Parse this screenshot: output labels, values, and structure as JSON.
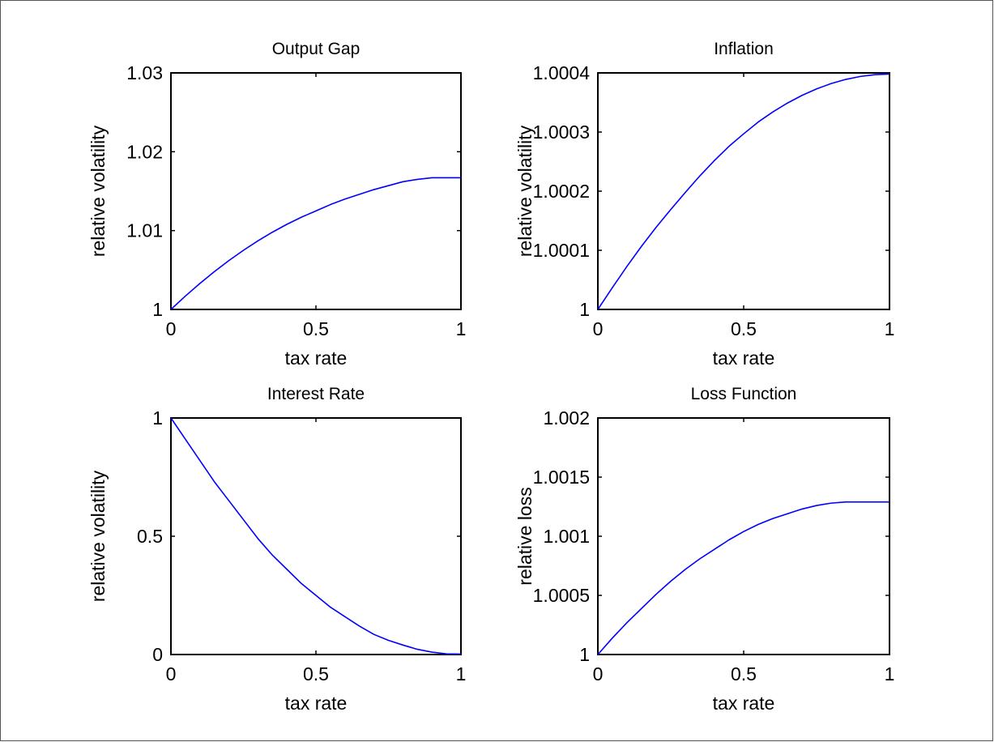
{
  "chart_data": [
    {
      "type": "line",
      "title": "Output Gap",
      "xlabel": "tax rate",
      "ylabel": "relative volatility",
      "xlim": [
        0,
        1
      ],
      "ylim": [
        1,
        1.03
      ],
      "xticks": [
        0,
        0.5,
        1
      ],
      "xtick_labels": [
        "0",
        "0.5",
        "1"
      ],
      "yticks": [
        1,
        1.01,
        1.02,
        1.03
      ],
      "ytick_labels": [
        "1",
        "1.01",
        "1.02",
        "1.03"
      ],
      "grid": false,
      "line_color": "#0000ff",
      "series": [
        {
          "x": [
            0,
            0.05,
            0.1,
            0.15,
            0.2,
            0.25,
            0.3,
            0.35,
            0.4,
            0.45,
            0.5,
            0.55,
            0.6,
            0.65,
            0.7,
            0.75,
            0.8,
            0.85,
            0.9,
            0.95,
            1.0
          ],
          "y": [
            1.0,
            1.0017,
            1.0033,
            1.0048,
            1.0062,
            1.0075,
            1.0087,
            1.0098,
            1.0108,
            1.0117,
            1.0125,
            1.0133,
            1.014,
            1.0146,
            1.0152,
            1.0157,
            1.0162,
            1.0165,
            1.0167,
            1.0167,
            1.0167
          ]
        }
      ]
    },
    {
      "type": "line",
      "title": "Inflation",
      "xlabel": "tax rate",
      "ylabel": "relative volatility",
      "xlim": [
        0,
        1
      ],
      "ylim": [
        1,
        1.0004
      ],
      "xticks": [
        0,
        0.5,
        1
      ],
      "xtick_labels": [
        "0",
        "0.5",
        "1"
      ],
      "yticks": [
        1,
        1.0001,
        1.0002,
        1.0003,
        1.0004
      ],
      "ytick_labels": [
        "1",
        "1.0001",
        "1.0002",
        "1.0003",
        "1.0004"
      ],
      "grid": false,
      "line_color": "#0000ff",
      "series": [
        {
          "x": [
            0,
            0.05,
            0.1,
            0.15,
            0.2,
            0.25,
            0.3,
            0.35,
            0.4,
            0.45,
            0.5,
            0.55,
            0.6,
            0.65,
            0.7,
            0.75,
            0.8,
            0.85,
            0.9,
            0.95,
            1.0
          ],
          "y": [
            1.0,
            1.000037,
            1.000073,
            1.000107,
            1.000139,
            1.000169,
            1.000198,
            1.000226,
            1.000252,
            1.000276,
            1.000297,
            1.000317,
            1.000334,
            1.000349,
            1.000362,
            1.000373,
            1.000382,
            1.000389,
            1.000394,
            1.000397,
            1.000398
          ]
        }
      ]
    },
    {
      "type": "line",
      "title": "Interest Rate",
      "xlabel": "tax rate",
      "ylabel": "relative volatility",
      "xlim": [
        0,
        1
      ],
      "ylim": [
        0,
        1
      ],
      "xticks": [
        0,
        0.5,
        1
      ],
      "xtick_labels": [
        "0",
        "0.5",
        "1"
      ],
      "yticks": [
        0,
        0.5,
        1
      ],
      "ytick_labels": [
        "0",
        "0.5",
        "1"
      ],
      "grid": false,
      "line_color": "#0000ff",
      "series": [
        {
          "x": [
            0,
            0.05,
            0.1,
            0.15,
            0.2,
            0.25,
            0.3,
            0.35,
            0.4,
            0.45,
            0.5,
            0.55,
            0.6,
            0.65,
            0.7,
            0.75,
            0.8,
            0.85,
            0.9,
            0.95,
            1.0
          ],
          "y": [
            1.0,
            0.91,
            0.82,
            0.73,
            0.65,
            0.57,
            0.49,
            0.42,
            0.36,
            0.3,
            0.25,
            0.2,
            0.16,
            0.12,
            0.085,
            0.06,
            0.04,
            0.022,
            0.01,
            0.003,
            0.002
          ]
        }
      ]
    },
    {
      "type": "line",
      "title": "Loss Function",
      "xlabel": "tax rate",
      "ylabel": "relative loss",
      "xlim": [
        0,
        1
      ],
      "ylim": [
        1,
        1.002
      ],
      "xticks": [
        0,
        0.5,
        1
      ],
      "xtick_labels": [
        "0",
        "0.5",
        "1"
      ],
      "yticks": [
        1,
        1.0005,
        1.001,
        1.0015,
        1.002
      ],
      "ytick_labels": [
        "1",
        "1.0005",
        "1.001",
        "1.0015",
        "1.002"
      ],
      "grid": false,
      "line_color": "#0000ff",
      "series": [
        {
          "x": [
            0,
            0.05,
            0.1,
            0.15,
            0.2,
            0.25,
            0.3,
            0.35,
            0.4,
            0.45,
            0.5,
            0.55,
            0.6,
            0.65,
            0.7,
            0.75,
            0.8,
            0.85,
            0.9,
            0.95,
            1.0
          ],
          "y": [
            1.0,
            1.00014,
            1.00027,
            1.00039,
            1.00051,
            1.00062,
            1.00072,
            1.00081,
            1.00089,
            1.00097,
            1.00104,
            1.0011,
            1.00115,
            1.00119,
            1.00123,
            1.00126,
            1.00128,
            1.00129,
            1.00129,
            1.00129,
            1.00129
          ]
        }
      ]
    }
  ]
}
